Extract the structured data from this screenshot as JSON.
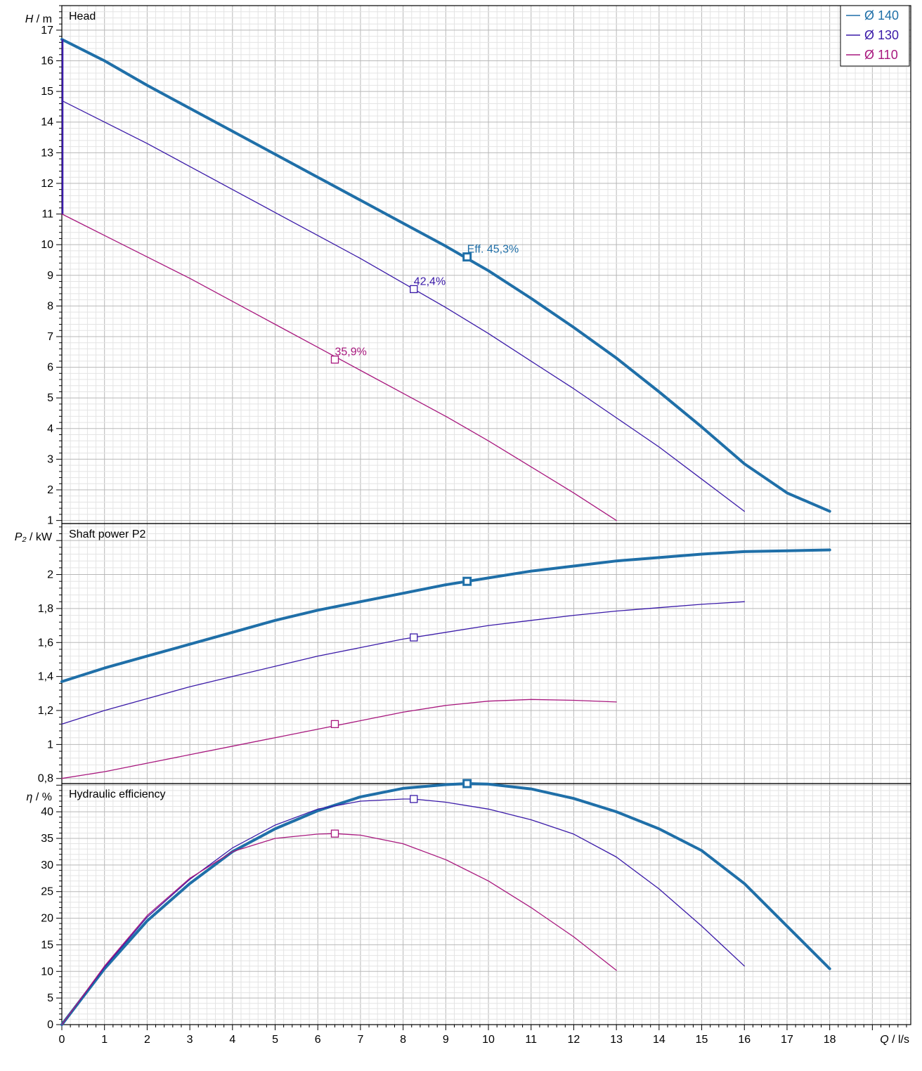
{
  "chart_data": {
    "type": "line",
    "x_axis": {
      "symbol": "Q",
      "unit": "l/s",
      "range": [
        0,
        19.9
      ],
      "ticks": [
        0,
        1,
        2,
        3,
        4,
        5,
        6,
        7,
        8,
        9,
        10,
        11,
        12,
        13,
        14,
        15,
        16,
        17,
        18
      ]
    },
    "legend": {
      "placement": "top-right",
      "entries": [
        {
          "label": "Ø 140",
          "color": "#1f6fa8",
          "series": "d140"
        },
        {
          "label": "Ø 130",
          "color": "#3a1aa8",
          "series": "d130"
        },
        {
          "label": "Ø 110",
          "color": "#a8187e",
          "series": "d110"
        }
      ]
    },
    "panels": [
      {
        "key": "head",
        "title": "Head",
        "y_symbol": "H",
        "y_unit": "m",
        "ylim": [
          0.9,
          17.8
        ],
        "ticks": [
          1,
          2,
          3,
          4,
          5,
          6,
          7,
          8,
          9,
          10,
          11,
          12,
          13,
          14,
          15,
          16,
          17
        ],
        "tick_labels": [
          "1",
          "2",
          "3",
          "4",
          "5",
          "6",
          "7",
          "8",
          "9",
          "10",
          "11",
          "12",
          "13",
          "14",
          "15",
          "16",
          "17"
        ],
        "grid": true,
        "series": [
          {
            "id": "d140",
            "color": "#1f6fa8",
            "width": 4,
            "x": [
              0,
              1,
              2,
              3,
              4,
              5,
              6,
              7,
              8,
              9,
              10,
              11,
              12,
              13,
              14,
              15,
              16,
              17,
              18
            ],
            "y": [
              16.7,
              16.0,
              15.2,
              14.45,
              13.7,
              12.95,
              12.2,
              11.45,
              10.7,
              9.95,
              9.15,
              8.25,
              7.3,
              6.3,
              5.2,
              4.05,
              2.85,
              1.9,
              1.3
            ],
            "marker": {
              "x": 9.5,
              "y": 9.6,
              "label": "Eff.  45,3%"
            }
          },
          {
            "id": "d130",
            "color": "#3a1aa8",
            "width": 1.3,
            "x": [
              0,
              1,
              2,
              3,
              4,
              5,
              6,
              7,
              8,
              9,
              10,
              11,
              12,
              13,
              14,
              15,
              16
            ],
            "y": [
              14.7,
              14.0,
              13.3,
              12.55,
              11.8,
              11.05,
              10.3,
              9.55,
              8.75,
              7.95,
              7.1,
              6.2,
              5.3,
              4.35,
              3.4,
              2.35,
              1.3
            ],
            "marker": {
              "x": 8.25,
              "y": 8.55,
              "label": "42,4%"
            }
          },
          {
            "id": "d110",
            "color": "#a8187e",
            "width": 1.3,
            "x": [
              0,
              1,
              2,
              3,
              4,
              5,
              6,
              7,
              8,
              9,
              10,
              11,
              12,
              13
            ],
            "y": [
              11.0,
              10.3,
              9.6,
              8.9,
              8.15,
              7.4,
              6.65,
              5.9,
              5.15,
              4.4,
              3.6,
              2.75,
              1.9,
              1.0
            ],
            "marker": {
              "x": 6.4,
              "y": 6.25,
              "label": "35,9%"
            }
          }
        ]
      },
      {
        "key": "power",
        "title": "Shaft power P2",
        "y_symbol": "P₂",
        "y_unit": "kW",
        "ylim": [
          0.77,
          2.3
        ],
        "ticks": [
          0.8,
          1.0,
          1.2,
          1.4,
          1.6,
          1.8,
          2.0
        ],
        "tick_labels": [
          "0,8",
          "1",
          "1,2",
          "1,4",
          "1,6",
          "1,8",
          "2"
        ],
        "grid": true,
        "series": [
          {
            "id": "d140",
            "color": "#1f6fa8",
            "width": 4,
            "x": [
              0,
              1,
              2,
              3,
              4,
              5,
              6,
              7,
              8,
              9,
              10,
              11,
              12,
              13,
              14,
              15,
              16,
              17,
              18
            ],
            "y": [
              1.37,
              1.45,
              1.52,
              1.59,
              1.66,
              1.73,
              1.79,
              1.84,
              1.89,
              1.94,
              1.98,
              2.02,
              2.05,
              2.08,
              2.1,
              2.12,
              2.135,
              2.14,
              2.145
            ],
            "marker": {
              "x": 9.5,
              "y": 1.96
            }
          },
          {
            "id": "d130",
            "color": "#3a1aa8",
            "width": 1.3,
            "x": [
              0,
              1,
              2,
              3,
              4,
              5,
              6,
              7,
              8,
              9,
              10,
              11,
              12,
              13,
              14,
              15,
              16
            ],
            "y": [
              1.12,
              1.2,
              1.27,
              1.34,
              1.4,
              1.46,
              1.52,
              1.57,
              1.62,
              1.66,
              1.7,
              1.73,
              1.76,
              1.785,
              1.805,
              1.825,
              1.84
            ],
            "marker": {
              "x": 8.25,
              "y": 1.63
            }
          },
          {
            "id": "d110",
            "color": "#a8187e",
            "width": 1.3,
            "x": [
              0,
              1,
              2,
              3,
              4,
              5,
              6,
              7,
              8,
              9,
              10,
              11,
              12,
              13
            ],
            "y": [
              0.8,
              0.84,
              0.89,
              0.94,
              0.99,
              1.04,
              1.09,
              1.14,
              1.19,
              1.23,
              1.255,
              1.265,
              1.26,
              1.25
            ],
            "marker": {
              "x": 6.4,
              "y": 1.12
            }
          }
        ]
      },
      {
        "key": "efficiency",
        "title": "Hydraulic efficiency",
        "y_symbol": "η",
        "y_unit": "%",
        "ylim": [
          0,
          45.3
        ],
        "ticks": [
          0,
          5,
          10,
          15,
          20,
          25,
          30,
          35,
          40
        ],
        "tick_labels": [
          "0",
          "5",
          "10",
          "15",
          "20",
          "25",
          "30",
          "35",
          "40"
        ],
        "grid": true,
        "series": [
          {
            "id": "d140",
            "color": "#1f6fa8",
            "width": 4,
            "x": [
              0,
              1,
              2,
              3,
              4,
              5,
              6,
              7,
              8,
              9,
              9.5,
              10,
              11,
              12,
              13,
              14,
              15,
              16,
              17,
              18
            ],
            "y": [
              0,
              10.5,
              19.5,
              26.5,
              32.5,
              36.8,
              40.2,
              42.8,
              44.4,
              45.1,
              45.3,
              45.2,
              44.3,
              42.5,
              40.0,
              36.8,
              32.7,
              26.5,
              18.5,
              10.5
            ],
            "marker": {
              "x": 9.5,
              "y": 45.3
            }
          },
          {
            "id": "d130",
            "color": "#3a1aa8",
            "width": 1.3,
            "x": [
              0,
              1,
              2,
              3,
              4,
              5,
              6,
              7,
              8,
              8.25,
              9,
              10,
              11,
              12,
              13,
              14,
              15,
              16
            ],
            "y": [
              0,
              10.8,
              20.2,
              27.3,
              33.2,
              37.5,
              40.5,
              42.0,
              42.4,
              42.4,
              41.8,
              40.5,
              38.5,
              35.8,
              31.5,
              25.5,
              18.5,
              11.0
            ],
            "marker": {
              "x": 8.25,
              "y": 42.4
            }
          },
          {
            "id": "d110",
            "color": "#a8187e",
            "width": 1.3,
            "x": [
              0,
              1,
              2,
              3,
              4,
              5,
              6,
              6.4,
              7,
              8,
              9,
              10,
              11,
              12,
              13
            ],
            "y": [
              0,
              11.0,
              20.5,
              27.5,
              32.5,
              35.0,
              35.8,
              35.9,
              35.6,
              34.0,
              31.0,
              27.0,
              22.0,
              16.5,
              10.2
            ],
            "marker": {
              "x": 6.4,
              "y": 35.9
            }
          }
        ]
      }
    ]
  }
}
